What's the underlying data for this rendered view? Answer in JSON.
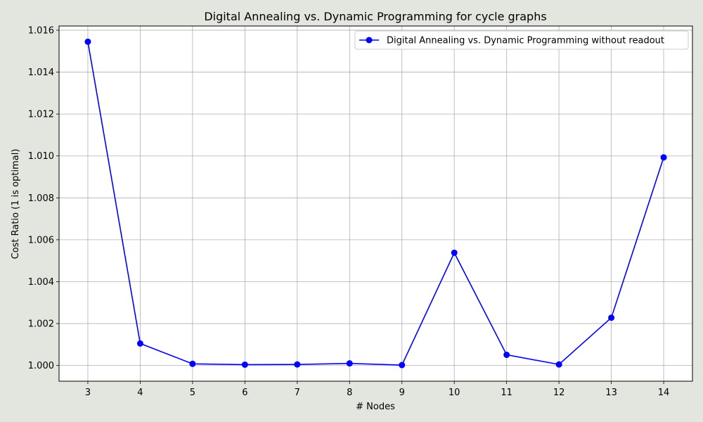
{
  "chart_data": {
    "type": "line",
    "title": "Digital Annealing vs. Dynamic Programming for cycle graphs",
    "xlabel": "# Nodes",
    "ylabel": "Cost Ratio (1 is optimal)",
    "x": [
      3,
      4,
      5,
      6,
      7,
      8,
      9,
      10,
      11,
      12,
      13,
      14
    ],
    "xlim": [
      2.45,
      14.55
    ],
    "ylim": [
      0.99925,
      1.0162
    ],
    "xticks": [
      3,
      4,
      5,
      6,
      7,
      8,
      9,
      10,
      11,
      12,
      13,
      14
    ],
    "yticks": [
      1.0,
      1.002,
      1.004,
      1.006,
      1.008,
      1.01,
      1.012,
      1.014,
      1.016
    ],
    "grid": true,
    "legend_position": "top-right",
    "series": [
      {
        "name": "Digital Annealing vs. Dynamic Programming without readout",
        "color": "#0000ff",
        "marker": "circle",
        "values": [
          1.01545,
          1.00105,
          1.00008,
          1.00004,
          1.00005,
          1.0001,
          1.00002,
          1.00538,
          1.00051,
          1.00005,
          1.00228,
          1.00993
        ]
      }
    ]
  }
}
